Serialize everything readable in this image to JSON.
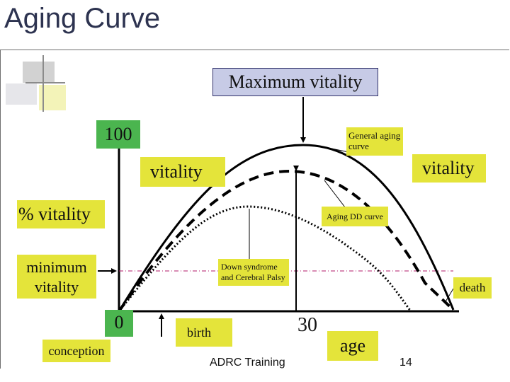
{
  "title": "Aging Curve",
  "labels": {
    "max_vitality": "Maximum vitality",
    "hundred": "100",
    "general_aging_curve": "General aging curve",
    "vitality_left": "vitality",
    "vitality_right": "vitality",
    "pct_vitality": "% vitality",
    "aging_dd_curve": "Aging DD curve",
    "minimum_vitality": "minimum vitality",
    "down_syndrome": "Down syndrome and Cerebral Palsy",
    "death": "death",
    "zero": "0",
    "birth": "birth",
    "thirty": "30",
    "age": "age",
    "conception": "conception"
  },
  "footer": {
    "center": "ADRC Training",
    "page": "14"
  },
  "colors": {
    "title": "#2d3350",
    "yellow_box": "#e4e43a",
    "green_box": "#4bb54f",
    "max_box": "#c7cbe6",
    "min_line": "#b01a6a"
  }
}
